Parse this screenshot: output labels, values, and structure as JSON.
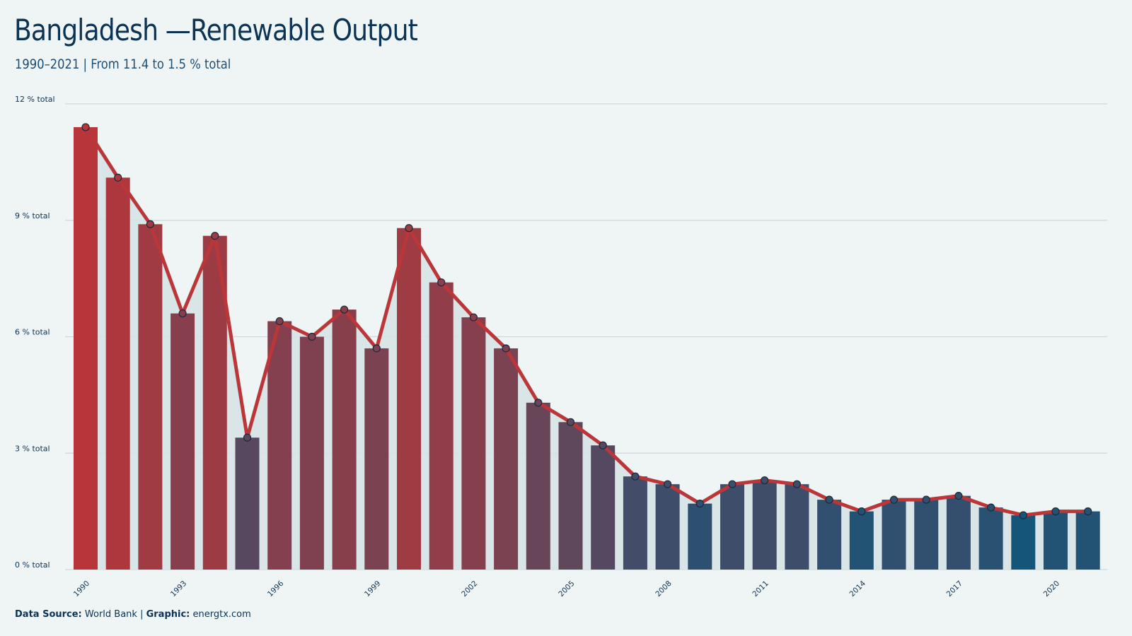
{
  "header": {
    "title": "Bangladesh —Renewable Output",
    "subtitle": "1990–2021 | From 11.4 to 1.5 % total"
  },
  "footer": {
    "source_label": "Data Source:",
    "source_value": " World Bank | ",
    "graphic_label": "Graphic:",
    "graphic_value": " energtx.com"
  },
  "colors": {
    "high": "#b83639",
    "low": "#15557a",
    "line": "#bb3639",
    "grid": "#cdd9dc",
    "area": "#d6e3e5"
  },
  "chart_data": {
    "type": "bar",
    "title": "Bangladesh —Renewable Output",
    "subtitle": "1990–2021 | From 11.4 to 1.5 % total",
    "xlabel": "",
    "ylabel": "",
    "ylim": [
      0,
      12
    ],
    "yticks": [
      0,
      3,
      6,
      9,
      12
    ],
    "ytick_labels": [
      "0 % total",
      "3 % total",
      "6 % total",
      "9 % total",
      "12 % total"
    ],
    "xtick_labels": [
      "1990",
      "1993",
      "1996",
      "1999",
      "2002",
      "2005",
      "2008",
      "2011",
      "2014",
      "2017",
      "2020"
    ],
    "grid": true,
    "categories": [
      "1990",
      "1991",
      "1992",
      "1993",
      "1994",
      "1995",
      "1996",
      "1997",
      "1998",
      "1999",
      "2000",
      "2001",
      "2002",
      "2003",
      "2004",
      "2005",
      "2006",
      "2007",
      "2008",
      "2009",
      "2010",
      "2011",
      "2012",
      "2013",
      "2014",
      "2015",
      "2016",
      "2017",
      "2018",
      "2019",
      "2020",
      "2021"
    ],
    "values": [
      11.4,
      10.1,
      8.9,
      6.6,
      8.6,
      3.4,
      6.4,
      6.0,
      6.7,
      5.7,
      8.8,
      7.4,
      6.5,
      5.7,
      4.3,
      3.8,
      3.2,
      2.4,
      2.2,
      1.7,
      2.2,
      2.3,
      2.2,
      1.8,
      1.5,
      1.8,
      1.8,
      1.9,
      1.6,
      1.4,
      1.5,
      1.5
    ]
  }
}
